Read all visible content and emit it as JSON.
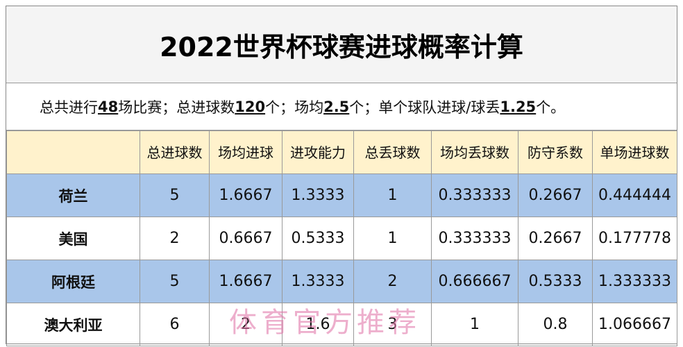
{
  "title": "2022世界杯球赛进球概率计算",
  "summary": [
    {
      "text": "总共进行"
    },
    {
      "text": "48",
      "emphasis": true
    },
    {
      "text": "场比赛；总进球数"
    },
    {
      "text": "120",
      "emphasis": true
    },
    {
      "text": "个；场均"
    },
    {
      "text": "2.5",
      "emphasis": true
    },
    {
      "text": "个；单个球队进球/球丢"
    },
    {
      "text": "1.25",
      "emphasis": true
    },
    {
      "text": "个。"
    }
  ],
  "table": {
    "header": [
      "总进球数",
      "场均进球",
      "进攻能力",
      "总丢球数",
      "场均丢球数",
      "防守系数",
      "单场进球数"
    ],
    "rows": [
      [
        "荷兰",
        "5",
        "1.6667",
        "1.3333",
        "1",
        "0.333333",
        "0.2667",
        "0.444444"
      ],
      [
        "美国",
        "2",
        "0.6667",
        "0.5333",
        "1",
        "0.333333",
        "0.2667",
        "0.177778"
      ],
      [
        "阿根廷",
        "5",
        "1.6667",
        "1.3333",
        "2",
        "0.666667",
        "0.5333",
        "1.333333"
      ],
      [
        "澳大利亚",
        "6",
        "2",
        "1.6",
        "3",
        "1",
        "0.8",
        "1.066667"
      ]
    ]
  },
  "watermark": "体育官方推荐"
}
